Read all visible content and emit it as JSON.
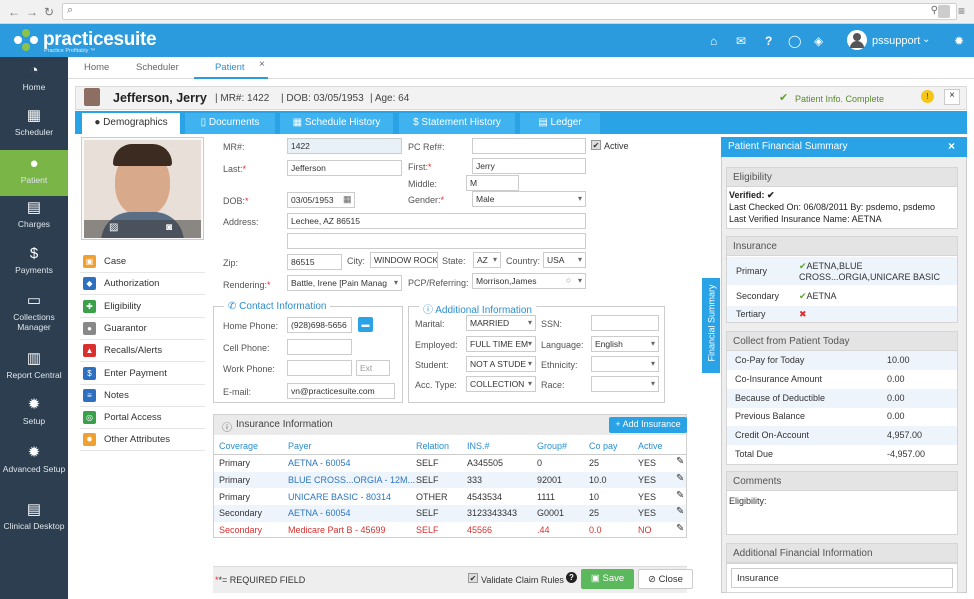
{
  "browser": {
    "url": ""
  },
  "app": {
    "logo_name": "practicesuite",
    "logo_tagline": "Practice Profitably ™",
    "username": "pssupport"
  },
  "sidebar": [
    {
      "label": "Home",
      "icon": "dashboard-icon",
      "glyph": "◔"
    },
    {
      "label": "Scheduler",
      "icon": "calendar-icon",
      "glyph": "▦"
    },
    {
      "label": "Patient",
      "icon": "user-icon",
      "glyph": "●"
    },
    {
      "label": "Charges",
      "icon": "charges-icon",
      "glyph": "▤"
    },
    {
      "label": "Payments",
      "icon": "dollar-icon",
      "glyph": "$"
    },
    {
      "label": "Collections Manager",
      "icon": "folder-icon",
      "glyph": "▭"
    },
    {
      "label": "Report Central",
      "icon": "report-icon",
      "glyph": "▥"
    },
    {
      "label": "Setup",
      "icon": "gear-icon",
      "glyph": "✹"
    },
    {
      "label": "Advanced Setup",
      "icon": "gears-icon",
      "glyph": "✹"
    },
    {
      "label": "Clinical Desktop",
      "icon": "clinical-icon",
      "glyph": "▤"
    }
  ],
  "main_tabs": [
    {
      "label": "Home"
    },
    {
      "label": "Scheduler"
    },
    {
      "label": "Patient"
    }
  ],
  "patient_header": {
    "name": "Jefferson, Jerry",
    "mrn": "| MR#: 1422",
    "dob": "| DOB: 03/05/1953",
    "age": "| Age: 64",
    "status": "Patient Info. Complete"
  },
  "sub_tabs": [
    {
      "label": "Demographics"
    },
    {
      "label": "Documents"
    },
    {
      "label": "Schedule History"
    },
    {
      "label": "Statement History"
    },
    {
      "label": "Ledger"
    }
  ],
  "form": {
    "mr_label": "MR#:",
    "mr_value": "1422",
    "pcref_label": "PC Ref#:",
    "pcref_value": "",
    "active_label": "Active",
    "last_label": "Last:",
    "last_value": "Jefferson",
    "first_label": "First:",
    "first_value": "Jerry",
    "middle_label": "Middle:",
    "middle_value": "M",
    "dob_label": "DOB:",
    "dob_value": "03/05/1953",
    "gender_label": "Gender:",
    "gender_value": "Male",
    "address_label": "Address:",
    "address_value": "Lechee, AZ 86515",
    "address2_value": "",
    "zip_label": "Zip:",
    "zip_value": "86515",
    "city_label": "City:",
    "city_value": "WINDOW ROCK",
    "state_label": "State:",
    "state_value": "AZ",
    "country_label": "Country:",
    "country_value": "USA",
    "rendering_label": "Rendering:",
    "rendering_value": "Battle, Irene [Pain Manag",
    "pcp_label": "PCP/Referring:",
    "pcp_value": "Morrison,James"
  },
  "contact": {
    "title": "Contact Information",
    "home_label": "Home Phone:",
    "home_value": "(928)698-5656",
    "cell_label": "Cell Phone:",
    "cell_value": "",
    "work_label": "Work Phone:",
    "work_value": "",
    "ext_placeholder": "Ext",
    "email_label": "E-mail:",
    "email_value": "vn@practicesuite.com"
  },
  "additional": {
    "title": "Additional Information",
    "marital_label": "Marital:",
    "marital_value": "MARRIED",
    "ssn_label": "SSN:",
    "ssn_value": "",
    "employed_label": "Employed:",
    "employed_value": "FULL TIME EM",
    "language_label": "Language:",
    "language_value": "English",
    "student_label": "Student:",
    "student_value": "NOT A STUDE",
    "ethnicity_label": "Ethnicity:",
    "ethnicity_value": "",
    "acctype_label": "Acc. Type:",
    "acctype_value": "COLLECTION",
    "race_label": "Race:",
    "race_value": ""
  },
  "left_menu": [
    {
      "label": "Case",
      "icon": "case-icon",
      "color": "#f0a030",
      "glyph": "▣"
    },
    {
      "label": "Authorization",
      "icon": "shield-icon",
      "color": "#2e6fc0",
      "glyph": "◆"
    },
    {
      "label": "Eligibility",
      "icon": "eligibility-icon",
      "color": "#3aa04a",
      "glyph": "✚"
    },
    {
      "label": "Guarantor",
      "icon": "guarantor-icon",
      "color": "#888888",
      "glyph": "●"
    },
    {
      "label": "Recalls/Alerts",
      "icon": "bell-icon",
      "color": "#d9302f",
      "glyph": "▲"
    },
    {
      "label": "Enter Payment",
      "icon": "payment-icon",
      "color": "#2e6fc0",
      "glyph": "$"
    },
    {
      "label": "Notes",
      "icon": "notes-icon",
      "color": "#2e6fc0",
      "glyph": "≡"
    },
    {
      "label": "Portal Access",
      "icon": "portal-icon",
      "color": "#3aa04a",
      "glyph": "◎"
    },
    {
      "label": "Other Attributes",
      "icon": "attributes-icon",
      "color": "#f0a030",
      "glyph": "✹"
    }
  ],
  "insurance": {
    "title": "Insurance Information",
    "add_label": "+ Add Insurance",
    "columns": [
      "Coverage",
      "Payer",
      "Relation",
      "INS.#",
      "Group#",
      "Co pay",
      "Active"
    ],
    "rows": [
      {
        "coverage": "Primary",
        "payer": "AETNA - 60054",
        "relation": "SELF",
        "ins": "A345505",
        "group": "0",
        "copay": "25",
        "active": "YES"
      },
      {
        "coverage": "Primary",
        "payer": "BLUE CROSS...ORGIA - 12M...",
        "relation": "SELF",
        "ins": "333",
        "group": "92001",
        "copay": "10.0",
        "active": "YES"
      },
      {
        "coverage": "Primary",
        "payer": "UNICARE BASIC - 80314",
        "relation": "OTHER",
        "ins": "4543534",
        "group": "1111",
        "copay": "10",
        "active": "YES"
      },
      {
        "coverage": "Secondary",
        "payer": "AETNA - 60054",
        "relation": "SELF",
        "ins": "3123343343",
        "group": "G0001",
        "copay": "25",
        "active": "YES"
      },
      {
        "coverage": "Secondary",
        "payer": "Medicare Part B - 45699",
        "relation": "SELF",
        "ins": "45566",
        "group": ".44",
        "copay": "0.0",
        "active": "NO"
      }
    ]
  },
  "footer": {
    "required": "*= REQUIRED FIELD",
    "validate": "Validate Claim Rules",
    "save": "Save",
    "close": "Close"
  },
  "finance": {
    "tab_label": "Financial Summary",
    "title": "Patient Financial Summary",
    "eligibility_title": "Eligibility",
    "verified": "Verified: ✔",
    "last_checked": "Last Checked On: 06/08/2011 By: psdemo, psdemo",
    "last_verified": "Last Verified Insurance Name: AETNA",
    "insurance_title": "Insurance",
    "primary_label": "Primary",
    "primary_value": "AETNA,BLUE CROSS...ORGIA,UNICARE BASIC",
    "secondary_label": "Secondary",
    "secondary_value": "AETNA",
    "tertiary_label": "Tertiary",
    "collect_title": "Collect from Patient Today",
    "collect": [
      {
        "label": "Co-Pay for Today",
        "value": "10.00"
      },
      {
        "label": "Co-Insurance Amount",
        "value": "0.00"
      },
      {
        "label": "Because of Deductible",
        "value": "0.00"
      },
      {
        "label": "Previous Balance",
        "value": "0.00"
      },
      {
        "label": "Credit On-Account",
        "value": "4,957.00"
      },
      {
        "label": "Total Due",
        "value": "-4,957.00"
      }
    ],
    "comments_title": "Comments",
    "comments_text": "Eligibility:",
    "additional_title": "Additional Financial Information",
    "additional_item": "Insurance"
  },
  "colors": {
    "brand": "#2b9bde",
    "sidebar": "#2c3e50",
    "active": "#7ab547",
    "save": "#5cb85c"
  }
}
